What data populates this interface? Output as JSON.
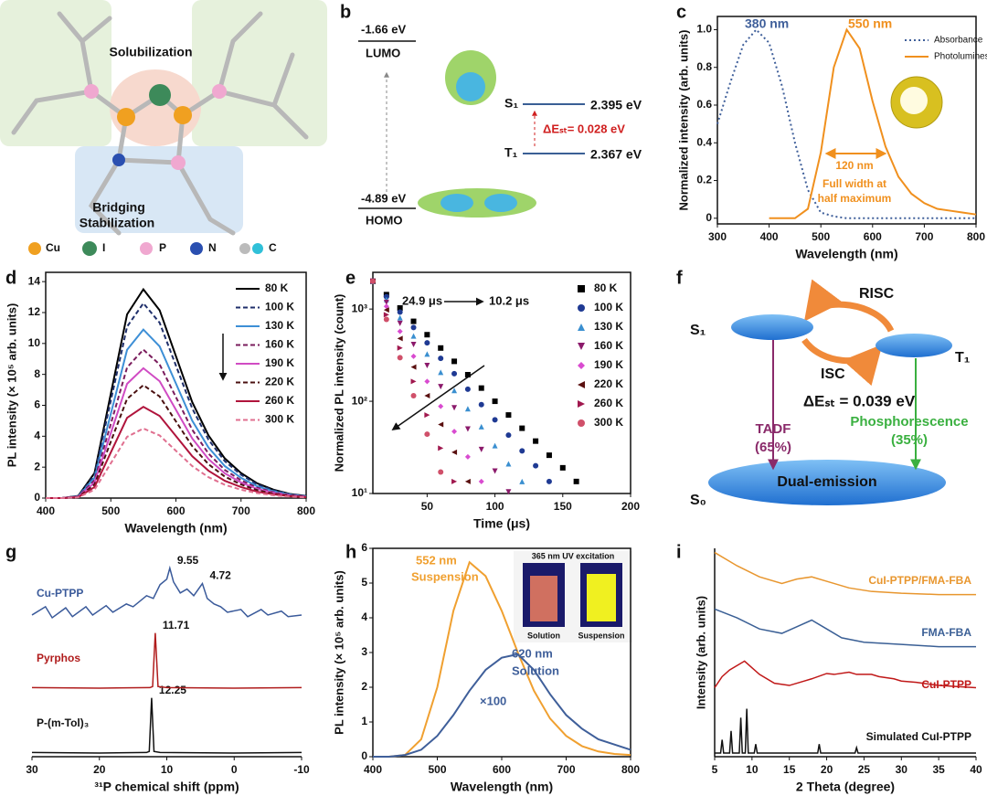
{
  "chart_data": [
    {
      "panel": "c",
      "type": "line",
      "x_label": "Wavelength (nm)",
      "y_label": "Normalized intensity (arb. units)",
      "xlim": [
        300,
        800
      ],
      "xticks": [
        300,
        400,
        500,
        600,
        700,
        800
      ],
      "ylim": [
        -0.03,
        1.07
      ],
      "yticks": [
        0,
        0.2,
        0.4,
        0.6,
        0.8,
        {
          "value": 1,
          "label": "1.0"
        }
      ],
      "x": [
        300,
        325,
        350,
        375,
        400,
        425,
        450,
        475,
        500,
        525,
        550,
        575,
        600,
        625,
        650,
        675,
        700,
        725,
        750,
        775,
        800
      ],
      "series": [
        {
          "name": "Absorbance",
          "color": "#3f5f9a",
          "dash": "dotted",
          "values": [
            0.5,
            0.72,
            0.92,
            1.0,
            0.93,
            0.7,
            0.4,
            0.15,
            0.03,
            0.01,
            0,
            0,
            0,
            0,
            0,
            0,
            0,
            0,
            0,
            0,
            0
          ]
        },
        {
          "name": "Photoluminescence",
          "color": "#f0901e",
          "dash": "solid",
          "values": [
            null,
            null,
            null,
            null,
            0,
            0,
            0,
            0.05,
            0.35,
            0.8,
            1.0,
            0.9,
            0.62,
            0.38,
            0.22,
            0.13,
            0.08,
            0.05,
            0.04,
            0.03,
            0.02
          ]
        }
      ],
      "annotations": [
        "380 nm",
        "550 nm",
        "120 nm",
        "Full width at",
        "half maximum"
      ]
    },
    {
      "panel": "d",
      "type": "line",
      "x_label": "Wavelength (nm)",
      "y_label": "PL intensity (× 10⁵ arb. units)",
      "xlim": [
        400,
        800
      ],
      "xticks": [
        400,
        500,
        600,
        700,
        800
      ],
      "ylim": [
        0,
        14.6
      ],
      "yticks": [
        0,
        2,
        4,
        6,
        8,
        10,
        12,
        14
      ],
      "x": [
        400,
        425,
        450,
        475,
        500,
        525,
        550,
        575,
        600,
        625,
        650,
        675,
        700,
        725,
        750,
        775,
        800
      ],
      "series": [
        {
          "name": "80 K",
          "color": "#000000",
          "dash": "solid",
          "values": [
            0,
            0,
            0.14,
            1.62,
            6.75,
            11.88,
            13.5,
            12.15,
            9.18,
            6.21,
            4.05,
            2.57,
            1.62,
            0.95,
            0.54,
            0.27,
            0.14
          ]
        },
        {
          "name": "100 K",
          "color": "#1f2f6b",
          "dash": "dashed",
          "values": [
            0,
            0,
            0.13,
            1.51,
            6.3,
            11.09,
            12.6,
            11.34,
            8.57,
            5.8,
            3.78,
            2.39,
            1.51,
            0.88,
            0.5,
            0.25,
            0.13
          ]
        },
        {
          "name": "130 K",
          "color": "#3d8fd6",
          "dash": "solid",
          "values": [
            0,
            0,
            0.11,
            1.31,
            5.45,
            9.59,
            10.9,
            9.81,
            7.41,
            5.01,
            3.27,
            2.07,
            1.31,
            0.76,
            0.44,
            0.22,
            0.11
          ]
        },
        {
          "name": "160 K",
          "color": "#7a1c5c",
          "dash": "dashed",
          "values": [
            0,
            0,
            0.1,
            1.15,
            4.8,
            8.45,
            9.6,
            8.64,
            6.53,
            4.42,
            2.88,
            1.82,
            1.15,
            0.67,
            0.38,
            0.19,
            0.1
          ]
        },
        {
          "name": "190 K",
          "color": "#d04bc3",
          "dash": "solid",
          "values": [
            0,
            0,
            0.08,
            1.01,
            4.2,
            7.39,
            8.4,
            7.56,
            5.71,
            3.86,
            2.52,
            1.6,
            1.01,
            0.59,
            0.34,
            0.17,
            0.08
          ]
        },
        {
          "name": "220 K",
          "color": "#4a1010",
          "dash": "dashed",
          "values": [
            0,
            0,
            0.07,
            0.88,
            3.65,
            6.42,
            7.3,
            6.57,
            4.96,
            3.36,
            2.19,
            1.39,
            0.88,
            0.51,
            0.29,
            0.15,
            0.07
          ]
        },
        {
          "name": "260 K",
          "color": "#b0143c",
          "dash": "solid",
          "values": [
            0,
            0,
            0.06,
            0.71,
            2.95,
            5.19,
            5.9,
            5.31,
            4.01,
            2.71,
            1.77,
            1.12,
            0.71,
            0.41,
            0.24,
            0.12,
            0.06
          ]
        },
        {
          "name": "300 K",
          "color": "#e07090",
          "dash": "dashed",
          "values": [
            0,
            0,
            0.05,
            0.54,
            2.25,
            3.96,
            4.5,
            4.05,
            3.06,
            2.07,
            1.35,
            0.86,
            0.54,
            0.32,
            0.18,
            0.09,
            0.05
          ]
        }
      ]
    },
    {
      "panel": "e",
      "type": "scatter",
      "log_y": true,
      "x_label": "Time (μs)",
      "y_label": "Normalized PL intensity (count)",
      "xlim": [
        10,
        200
      ],
      "xticks": [
        50,
        100,
        150,
        200
      ],
      "ylim": [
        10,
        2500
      ],
      "yticks": [
        {
          "value": 10,
          "label": "10¹"
        },
        {
          "value": 100,
          "label": "10²"
        },
        {
          "value": 1000,
          "label": "10³"
        }
      ],
      "x": [
        10,
        20,
        30,
        40,
        50,
        60,
        70,
        80,
        90,
        100,
        110,
        120,
        130,
        140,
        150,
        160,
        170,
        180
      ],
      "series": [
        {
          "name": "80 K",
          "color": "#000000",
          "marker": "square",
          "values": [
            2000,
            1433,
            1027,
            736,
            527,
            378,
            271,
            194,
            139,
            100,
            71,
            51,
            37,
            26,
            19,
            13.5,
            null,
            null
          ]
        },
        {
          "name": "100 K",
          "color": "#1f3a93",
          "marker": "circle",
          "values": [
            2000,
            1361,
            927,
            631,
            430,
            292,
            199,
            135,
            92,
            63,
            43,
            29,
            20,
            13.5,
            null,
            null,
            null,
            null
          ]
        },
        {
          "name": "130 K",
          "color": "#3a8fd0",
          "marker": "triangle-up",
          "values": [
            2000,
            1270,
            806,
            511,
            325,
            206,
            131,
            83,
            53,
            33,
            21,
            13.5,
            null,
            null,
            null,
            null,
            null,
            null
          ]
        },
        {
          "name": "160 K",
          "color": "#8b1a6b",
          "marker": "triangle-down",
          "values": [
            2000,
            1182,
            698,
            412,
            244,
            144,
            85,
            50,
            30,
            17.5,
            10.4,
            null,
            null,
            null,
            null,
            null,
            null,
            null
          ]
        },
        {
          "name": "190 K",
          "color": "#d94bd0",
          "marker": "diamond",
          "values": [
            2000,
            1070,
            573,
            307,
            164,
            88,
            47,
            25,
            13.5,
            null,
            null,
            null,
            null,
            null,
            null,
            null,
            null,
            null
          ]
        },
        {
          "name": "220 K",
          "color": "#5a1010",
          "marker": "triangle-left",
          "values": [
            2000,
            979,
            479,
            235,
            115,
            56,
            28,
            13.5,
            null,
            null,
            null,
            null,
            null,
            null,
            null,
            null,
            null,
            null
          ]
        },
        {
          "name": "260 K",
          "color": "#a0184e",
          "marker": "triangle-right",
          "values": [
            2000,
            869,
            378,
            164,
            71,
            31,
            13.5,
            null,
            null,
            null,
            null,
            null,
            null,
            null,
            null,
            null,
            null,
            null
          ]
        },
        {
          "name": "300 K",
          "color": "#d0506a",
          "marker": "circle",
          "values": [
            2000,
            772,
            297,
            115,
            44,
            17.1,
            null,
            null,
            null,
            null,
            null,
            null,
            null,
            null,
            null,
            null,
            null,
            null
          ]
        }
      ],
      "annotations": [
        "24.9 μs",
        "10.2 μs"
      ]
    },
    {
      "panel": "g",
      "type": "ridgeline",
      "x_label": "³¹P chemical shift (ppm)",
      "xlim": [
        30,
        -10
      ],
      "xticks": [
        30,
        20,
        10,
        0,
        -10
      ],
      "ylim": [
        0,
        1
      ],
      "series": [
        {
          "name": "P-(m-Tol)₃",
          "color": "#111111",
          "x": [
            30,
            20,
            13,
            12.6,
            12.25,
            11.9,
            11,
            0,
            -10
          ],
          "values": [
            0.01,
            0,
            0.01,
            0.03,
            1,
            0.03,
            0.01,
            0,
            0.01
          ],
          "peaks": [
            12.25
          ]
        },
        {
          "name": "Pyrphos",
          "color": "#b01c1c",
          "x": [
            30,
            20,
            12.5,
            12.1,
            11.71,
            11.3,
            10,
            0,
            -10
          ],
          "values": [
            0.01,
            0,
            0.01,
            0.03,
            1,
            0.03,
            0.01,
            0,
            0.01
          ],
          "peaks": [
            11.71
          ]
        },
        {
          "name": "Cu-PTPP",
          "color": "#3a5a9a",
          "x": [
            30,
            28,
            27,
            25,
            24,
            22,
            21,
            19,
            18,
            16,
            15,
            13,
            12,
            11,
            10,
            9.55,
            9,
            8,
            7,
            6,
            4.72,
            4,
            3,
            2,
            1,
            -1,
            -2,
            -4,
            -5,
            -7,
            -8,
            -10
          ],
          "values": [
            0.15,
            0.3,
            0.1,
            0.28,
            0.12,
            0.3,
            0.15,
            0.32,
            0.2,
            0.35,
            0.3,
            0.5,
            0.45,
            0.7,
            0.8,
            1.0,
            0.75,
            0.55,
            0.62,
            0.5,
            0.72,
            0.45,
            0.35,
            0.3,
            0.2,
            0.25,
            0.12,
            0.25,
            0.15,
            0.22,
            0.12,
            0.15
          ],
          "peaks": [
            9.55,
            4.72
          ]
        }
      ]
    },
    {
      "panel": "h",
      "type": "line",
      "x_label": "Wavelength (nm)",
      "y_label": "PL intensity (× 10⁵ arb. units)",
      "xlim": [
        400,
        800
      ],
      "xticks": [
        400,
        500,
        600,
        700,
        800
      ],
      "ylim": [
        0,
        6
      ],
      "yticks": [
        0,
        1,
        2,
        3,
        4,
        5,
        6
      ],
      "x": [
        400,
        425,
        450,
        475,
        500,
        525,
        550,
        575,
        600,
        625,
        650,
        675,
        700,
        725,
        750,
        775,
        800
      ],
      "series": [
        {
          "name": "Suspension",
          "color": "#f0a030",
          "dash": "solid",
          "values": [
            0,
            0,
            0.05,
            0.5,
            2.0,
            4.2,
            5.6,
            5.2,
            4.2,
            3.0,
            1.9,
            1.1,
            0.6,
            0.3,
            0.15,
            0.08,
            0.05
          ]
        },
        {
          "name": "Solution",
          "color": "#3f5f9a",
          "dash": "solid",
          "values": [
            0,
            0,
            0.05,
            0.2,
            0.6,
            1.2,
            1.9,
            2.5,
            2.85,
            2.95,
            2.5,
            1.8,
            1.2,
            0.8,
            0.5,
            0.35,
            0.2
          ]
        }
      ],
      "annotations": [
        "552 nm",
        "620 nm",
        "×100"
      ],
      "inset_title": "365 nm UV excitation",
      "inset_labels": [
        "Solution",
        "Suspension"
      ]
    },
    {
      "panel": "i",
      "type": "ridgeline",
      "x_label": "2 Theta (degree)",
      "y_label": "Intensity (arb. units)",
      "xlim": [
        5,
        40
      ],
      "xticks": [
        5,
        10,
        15,
        20,
        25,
        30,
        35,
        40
      ],
      "ylim": [
        0,
        1
      ],
      "series": [
        {
          "name": "Simulated CuI-PTPP",
          "color": "#111111",
          "x": [
            5,
            5.8,
            6,
            6.2,
            7,
            7.2,
            7.4,
            8.3,
            8.5,
            8.7,
            9.1,
            9.3,
            9.5,
            10.3,
            10.5,
            10.7,
            18.8,
            19,
            19.2,
            23.8,
            24,
            24.2,
            40
          ],
          "values": [
            0,
            0,
            0.3,
            0,
            0,
            0.5,
            0,
            0,
            0.8,
            0,
            0,
            1,
            0,
            0,
            0.2,
            0,
            0,
            0.2,
            0,
            0,
            0.12,
            0,
            0
          ]
        },
        {
          "name": "CuI-PTPP",
          "color": "#c01818",
          "x": [
            5,
            6,
            7,
            8,
            9,
            10,
            11,
            13,
            15,
            17,
            18,
            20,
            21,
            23,
            24,
            26,
            27,
            29,
            30,
            32,
            35,
            37,
            40
          ],
          "values": [
            0.3,
            0.55,
            0.7,
            0.8,
            0.9,
            0.75,
            0.6,
            0.4,
            0.35,
            0.45,
            0.5,
            0.62,
            0.6,
            0.65,
            0.6,
            0.6,
            0.55,
            0.5,
            0.45,
            0.42,
            0.35,
            0.33,
            0.3
          ]
        },
        {
          "name": "FMA-FBA",
          "color": "#3a5f95",
          "x": [
            5,
            8,
            11,
            14,
            16,
            18,
            20,
            22,
            25,
            30,
            35,
            40
          ],
          "values": [
            0.9,
            0.7,
            0.45,
            0.35,
            0.5,
            0.65,
            0.45,
            0.25,
            0.15,
            0.1,
            0.05,
            0.05
          ]
        },
        {
          "name": "CuI-PTPP/FMA-FBA",
          "color": "#e8962e",
          "x": [
            5,
            8,
            11,
            14,
            16,
            18,
            20,
            23,
            26,
            30,
            35,
            40
          ],
          "values": [
            1,
            0.7,
            0.45,
            0.3,
            0.4,
            0.45,
            0.35,
            0.2,
            0.12,
            0.08,
            0.05,
            0.05
          ]
        }
      ]
    }
  ],
  "diagrams": {
    "a": {
      "panel": "a",
      "regions": [
        "Solubilization",
        "Bridging",
        "Stabilization"
      ],
      "legend": [
        "Cu",
        "I",
        "P",
        "N",
        "C"
      ]
    },
    "b": {
      "panel": "b",
      "lumo_energy": "-1.66 eV",
      "lumo": "LUMO",
      "homo_energy": "-4.89 eV",
      "homo": "HOMO",
      "s1": "S₁",
      "s1_energy": "2.395 eV",
      "t1": "T₁",
      "t1_energy": "2.367 eV",
      "gap": "ΔEₛₜ= 0.028 eV"
    },
    "f": {
      "panel": "f",
      "s1": "S₁",
      "t1": "T₁",
      "s0": "S₀",
      "risc": "RISC",
      "isc": "ISC",
      "gap": "ΔEₛₜ = 0.039 eV",
      "tadf": "TADF",
      "tadf_share": "(65%)",
      "phos": "Phosphorescence",
      "phos_share": "(35%)",
      "ground": "Dual-emission"
    }
  }
}
